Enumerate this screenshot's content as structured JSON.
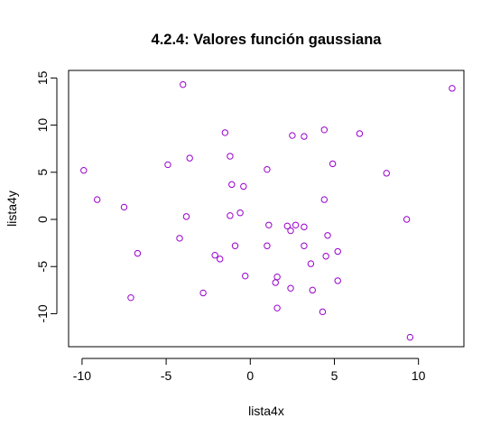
{
  "chart_data": {
    "type": "scatter",
    "title": "4.2.4: Valores función gaussiana",
    "xlabel": "lista4x",
    "ylabel": "lista4y",
    "xlim": [
      -10.8,
      12.7
    ],
    "ylim": [
      -13.5,
      15.8
    ],
    "xticks": [
      -10,
      -5,
      0,
      5,
      10
    ],
    "yticks": [
      -10,
      -5,
      0,
      5,
      10,
      15
    ],
    "grid": false,
    "point_color": "#9900cc",
    "points": [
      {
        "x": -9.9,
        "y": 5.2
      },
      {
        "x": -9.1,
        "y": 2.1
      },
      {
        "x": -7.5,
        "y": 1.3
      },
      {
        "x": -7.1,
        "y": -8.3
      },
      {
        "x": -6.7,
        "y": -3.6
      },
      {
        "x": -4.9,
        "y": 5.8
      },
      {
        "x": -4.2,
        "y": -2.0
      },
      {
        "x": -4.0,
        "y": 14.3
      },
      {
        "x": -3.8,
        "y": 0.3
      },
      {
        "x": -3.6,
        "y": 6.5
      },
      {
        "x": -2.8,
        "y": -7.8
      },
      {
        "x": -2.1,
        "y": -3.8
      },
      {
        "x": -1.8,
        "y": -4.2
      },
      {
        "x": -1.5,
        "y": 9.2
      },
      {
        "x": -1.2,
        "y": 6.7
      },
      {
        "x": -1.1,
        "y": 3.7
      },
      {
        "x": -1.2,
        "y": 0.4
      },
      {
        "x": -0.9,
        "y": -2.8
      },
      {
        "x": -0.6,
        "y": 0.7
      },
      {
        "x": -0.4,
        "y": 3.5
      },
      {
        "x": -0.3,
        "y": -6.0
      },
      {
        "x": 1.0,
        "y": 5.3
      },
      {
        "x": 1.1,
        "y": -0.6
      },
      {
        "x": 1.0,
        "y": -2.8
      },
      {
        "x": 1.5,
        "y": -6.7
      },
      {
        "x": 1.6,
        "y": -6.1
      },
      {
        "x": 1.6,
        "y": -9.4
      },
      {
        "x": 2.2,
        "y": -0.7
      },
      {
        "x": 2.4,
        "y": -1.2
      },
      {
        "x": 2.7,
        "y": -0.6
      },
      {
        "x": 2.4,
        "y": -7.3
      },
      {
        "x": 2.5,
        "y": 8.9
      },
      {
        "x": 3.2,
        "y": 8.8
      },
      {
        "x": 3.2,
        "y": -0.8
      },
      {
        "x": 3.2,
        "y": -2.8
      },
      {
        "x": 3.6,
        "y": -4.7
      },
      {
        "x": 3.7,
        "y": -7.5
      },
      {
        "x": 4.3,
        "y": -9.8
      },
      {
        "x": 4.4,
        "y": 9.5
      },
      {
        "x": 4.4,
        "y": 2.1
      },
      {
        "x": 4.6,
        "y": -1.7
      },
      {
        "x": 4.5,
        "y": -3.9
      },
      {
        "x": 4.9,
        "y": 5.9
      },
      {
        "x": 5.2,
        "y": -3.4
      },
      {
        "x": 5.2,
        "y": -6.5
      },
      {
        "x": 6.5,
        "y": 9.1
      },
      {
        "x": 8.1,
        "y": 4.9
      },
      {
        "x": 9.3,
        "y": 0.0
      },
      {
        "x": 9.5,
        "y": -12.5
      },
      {
        "x": 12.0,
        "y": 13.9
      }
    ]
  }
}
